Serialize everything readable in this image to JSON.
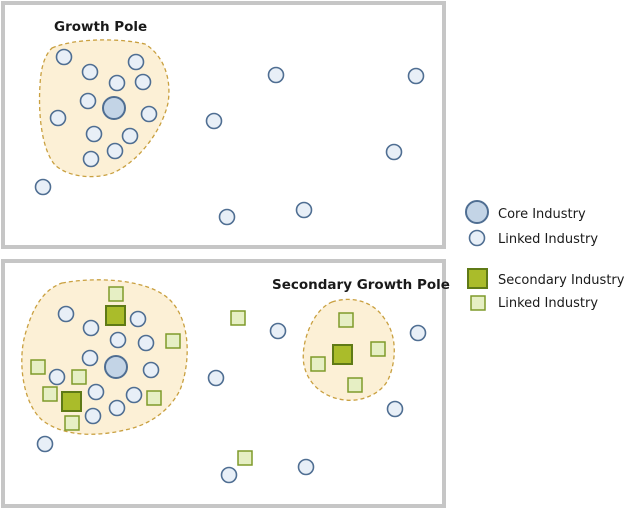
{
  "top_panel": {
    "title": "Growth Pole"
  },
  "bottom_panel": {
    "title": "Secondary Growth Pole"
  },
  "legend": {
    "core_industry": "Core Industry",
    "linked_industry_circle": "Linked Industry",
    "secondary_industry": "Secondary Industry",
    "linked_industry_square": "Linked Industry"
  },
  "colors": {
    "pole_fill": "#fcf0d6",
    "pole_border": "#c9a040",
    "circle_fill": "#e8eff7",
    "circle_border": "#4f6e92",
    "core_fill": "#c3d4e6",
    "secondary_fill": "#aabc2a",
    "linked_square_fill": "#e6efc4",
    "panel_border": "#c6c6c6"
  }
}
